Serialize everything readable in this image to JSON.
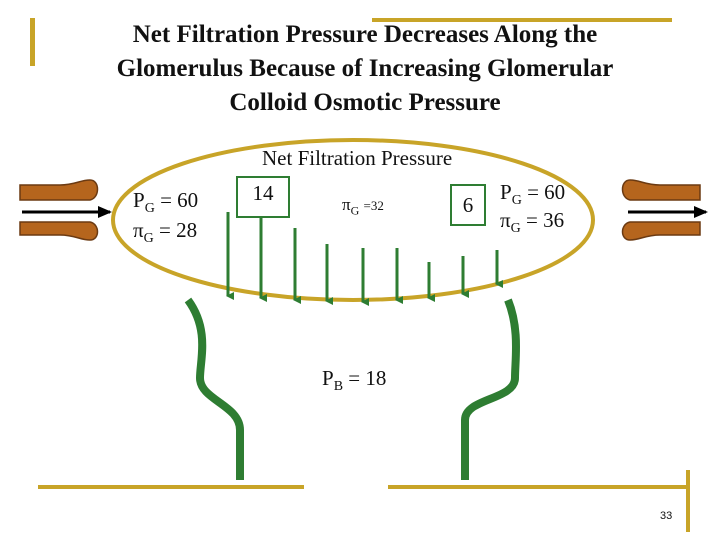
{
  "slide": {
    "title_lines": [
      "Net Filtration Pressure Decreases Along the",
      "Glomerulus Because of Increasing Glomerular",
      "Colloid Osmotic Pressure"
    ],
    "page_number": "33"
  },
  "diagram": {
    "heading": "Net Filtration Pressure",
    "afferent": {
      "pg_symbol": "P",
      "pg_sub": "G",
      "pg_value": "= 60",
      "pi_symbol": "π",
      "pi_sub": "G",
      "pi_value": "= 28"
    },
    "efferent": {
      "pg_symbol": "P",
      "pg_sub": "G",
      "pg_value": "= 60",
      "pi_symbol": "π",
      "pi_sub": "G",
      "pi_value": "= 36"
    },
    "middle": {
      "pi_symbol": "π",
      "pi_sub": "G",
      "pi_value": "=32"
    },
    "nfp_start": "14",
    "nfp_end": "6",
    "bowman": {
      "symbol": "P",
      "sub": "B",
      "value": "= 18"
    },
    "colors": {
      "accent": "#c8a428",
      "capsule": "#2e7d32",
      "vessel_fill": "#b5651d",
      "vessel_stroke": "#6b3a12",
      "arrow": "#000000"
    }
  }
}
